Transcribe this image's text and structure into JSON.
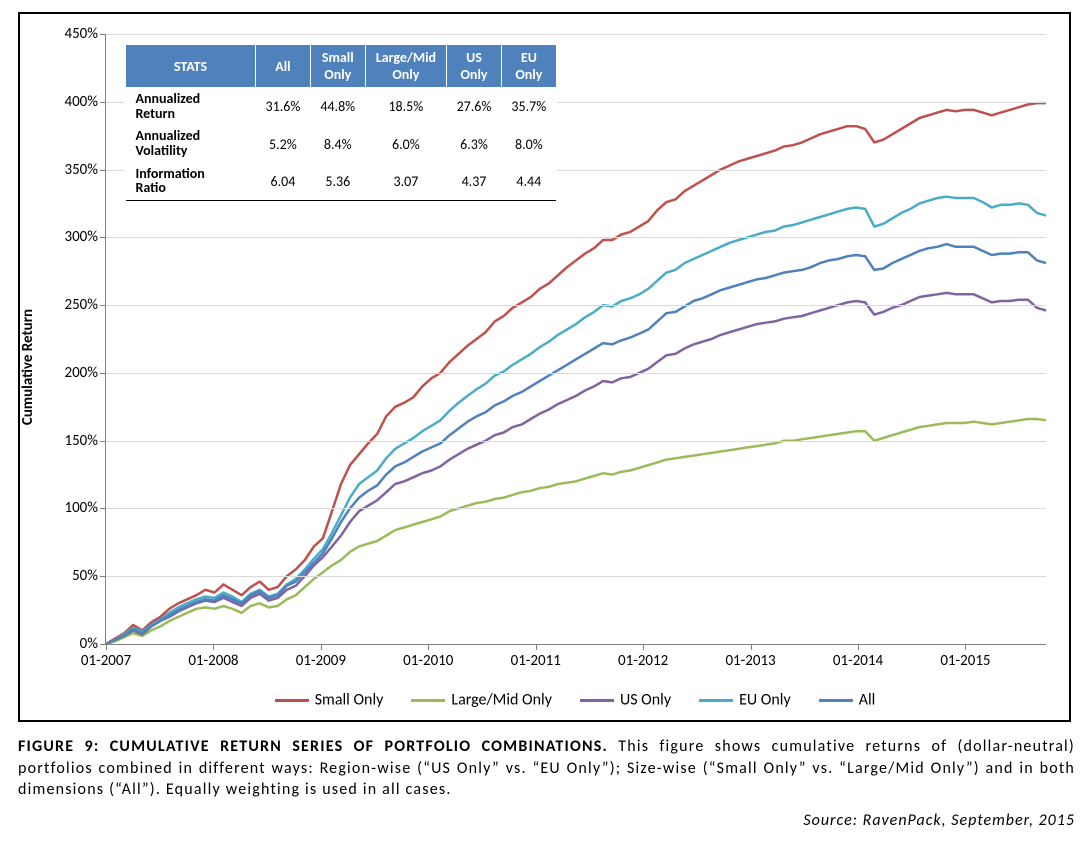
{
  "figure": {
    "caption_title": "FIGURE 9: CUMULATIVE RETURN SERIES OF PORTFOLIO COMBINATIONS.",
    "caption_body": "This figure shows cumulative returns of (dollar-neutral) portfolios combined in different ways: Region-wise (“US Only” vs. “EU Only”); Size-wise (“Small Only” vs. “Large/Mid Only”) and in both dimensions (“All”). Equally weighting is used in all cases.",
    "source": "Source: RavenPack, September, 2015"
  },
  "chart": {
    "type": "line",
    "y_axis_title": "Cumulative Return",
    "ylim": [
      0,
      450
    ],
    "ytick_step": 50,
    "y_ticks": [
      "0%",
      "50%",
      "100%",
      "150%",
      "200%",
      "250%",
      "300%",
      "350%",
      "400%",
      "450%"
    ],
    "x_ticks": [
      "01-2007",
      "01-2008",
      "01-2009",
      "01-2010",
      "01-2011",
      "01-2012",
      "01-2013",
      "01-2014",
      "01-2015"
    ],
    "x_range_months": 105,
    "grid_color": "#d9d9d9",
    "axis_color": "#808080",
    "background_color": "#ffffff",
    "line_width": 2.5,
    "tick_fontsize": 15,
    "axis_title_fontsize": 15,
    "legend_fontsize": 16,
    "series": [
      {
        "name": "Small Only",
        "color": "#c0504d",
        "values": [
          0,
          4,
          8,
          14,
          10,
          16,
          20,
          26,
          30,
          33,
          36,
          40,
          38,
          44,
          40,
          36,
          42,
          46,
          40,
          42,
          50,
          55,
          62,
          72,
          78,
          98,
          118,
          132,
          140,
          148,
          155,
          168,
          175,
          178,
          182,
          190,
          196,
          200,
          208,
          214,
          220,
          225,
          230,
          238,
          242,
          248,
          252,
          256,
          262,
          266,
          272,
          278,
          283,
          288,
          292,
          298,
          298,
          302,
          304,
          308,
          312,
          320,
          326,
          328,
          334,
          338,
          342,
          346,
          350,
          353,
          356,
          358,
          360,
          362,
          364,
          367,
          368,
          370,
          373,
          376,
          378,
          380,
          382,
          382,
          380,
          370,
          372,
          376,
          380,
          384,
          388,
          390,
          392,
          394,
          393,
          394,
          394,
          392,
          390,
          392,
          394,
          396,
          398,
          399,
          399
        ]
      },
      {
        "name": "Large/Mid Only",
        "color": "#9bbb59",
        "values": [
          0,
          2,
          5,
          8,
          6,
          10,
          13,
          17,
          20,
          23,
          26,
          27,
          26,
          28,
          26,
          23,
          28,
          30,
          27,
          28,
          33,
          36,
          42,
          48,
          53,
          58,
          62,
          68,
          72,
          74,
          76,
          80,
          84,
          86,
          88,
          90,
          92,
          94,
          98,
          100,
          102,
          104,
          105,
          107,
          108,
          110,
          112,
          113,
          115,
          116,
          118,
          119,
          120,
          122,
          124,
          126,
          125,
          127,
          128,
          130,
          132,
          134,
          136,
          137,
          138,
          139,
          140,
          141,
          142,
          143,
          144,
          145,
          146,
          147,
          148,
          150,
          150,
          151,
          152,
          153,
          154,
          155,
          156,
          157,
          157,
          150,
          152,
          154,
          156,
          158,
          160,
          161,
          162,
          163,
          163,
          163,
          164,
          163,
          162,
          163,
          164,
          165,
          166,
          166,
          165
        ]
      },
      {
        "name": "US Only",
        "color": "#8064a2",
        "values": [
          0,
          3,
          6,
          10,
          7,
          13,
          17,
          20,
          24,
          27,
          30,
          32,
          31,
          34,
          31,
          28,
          34,
          37,
          32,
          34,
          40,
          43,
          50,
          58,
          64,
          72,
          80,
          90,
          98,
          102,
          106,
          112,
          118,
          120,
          123,
          126,
          128,
          131,
          136,
          140,
          144,
          147,
          150,
          154,
          156,
          160,
          162,
          166,
          170,
          173,
          177,
          180,
          183,
          187,
          190,
          194,
          193,
          196,
          197,
          200,
          203,
          208,
          213,
          214,
          218,
          221,
          223,
          225,
          228,
          230,
          232,
          234,
          236,
          237,
          238,
          240,
          241,
          242,
          244,
          246,
          248,
          250,
          252,
          253,
          252,
          243,
          245,
          248,
          250,
          253,
          256,
          257,
          258,
          259,
          258,
          258,
          258,
          255,
          252,
          253,
          253,
          254,
          254,
          248,
          246
        ]
      },
      {
        "name": "EU Only",
        "color": "#4bacc6",
        "values": [
          0,
          3,
          7,
          12,
          9,
          14,
          18,
          23,
          27,
          30,
          33,
          35,
          34,
          38,
          35,
          31,
          37,
          40,
          35,
          37,
          44,
          48,
          55,
          63,
          70,
          82,
          95,
          108,
          118,
          123,
          128,
          137,
          144,
          148,
          152,
          157,
          161,
          165,
          172,
          178,
          183,
          188,
          192,
          198,
          201,
          206,
          210,
          214,
          219,
          223,
          228,
          232,
          236,
          241,
          245,
          250,
          249,
          253,
          255,
          258,
          262,
          268,
          274,
          276,
          281,
          284,
          287,
          290,
          293,
          296,
          298,
          300,
          302,
          304,
          305,
          308,
          309,
          311,
          313,
          315,
          317,
          319,
          321,
          322,
          321,
          308,
          310,
          314,
          318,
          321,
          325,
          327,
          329,
          330,
          329,
          329,
          329,
          326,
          322,
          324,
          324,
          325,
          324,
          318,
          316
        ]
      },
      {
        "name": "All",
        "color": "#4f81bd",
        "values": [
          0,
          3,
          6,
          11,
          8,
          13,
          17,
          21,
          25,
          28,
          31,
          33,
          32,
          36,
          33,
          30,
          36,
          39,
          34,
          36,
          43,
          46,
          53,
          60,
          67,
          78,
          90,
          100,
          108,
          113,
          117,
          125,
          131,
          134,
          138,
          142,
          145,
          148,
          154,
          159,
          164,
          168,
          171,
          176,
          179,
          183,
          186,
          190,
          194,
          198,
          202,
          206,
          210,
          214,
          218,
          222,
          221,
          224,
          226,
          229,
          232,
          238,
          244,
          245,
          249,
          253,
          255,
          258,
          261,
          263,
          265,
          267,
          269,
          270,
          272,
          274,
          275,
          276,
          278,
          281,
          283,
          284,
          286,
          287,
          286,
          276,
          277,
          281,
          284,
          287,
          290,
          292,
          293,
          295,
          293,
          293,
          293,
          290,
          287,
          288,
          288,
          289,
          289,
          283,
          281
        ]
      }
    ]
  },
  "stats_table": {
    "header": [
      "STATS",
      "All",
      "Small Only",
      "Large/Mid Only",
      "US Only",
      "EU Only"
    ],
    "rows": [
      {
        "label": "Annualized Return",
        "values": [
          "31.6%",
          "44.8%",
          "18.5%",
          "27.6%",
          "35.7%"
        ]
      },
      {
        "label": "Annualized Volatility",
        "values": [
          "5.2%",
          "8.4%",
          "6.0%",
          "6.3%",
          "8.0%"
        ]
      },
      {
        "label": "Information Ratio",
        "values": [
          "6.04",
          "5.36",
          "3.07",
          "4.37",
          "4.44"
        ]
      }
    ],
    "header_bg": "#4f81bd",
    "header_fg": "#ffffff"
  }
}
